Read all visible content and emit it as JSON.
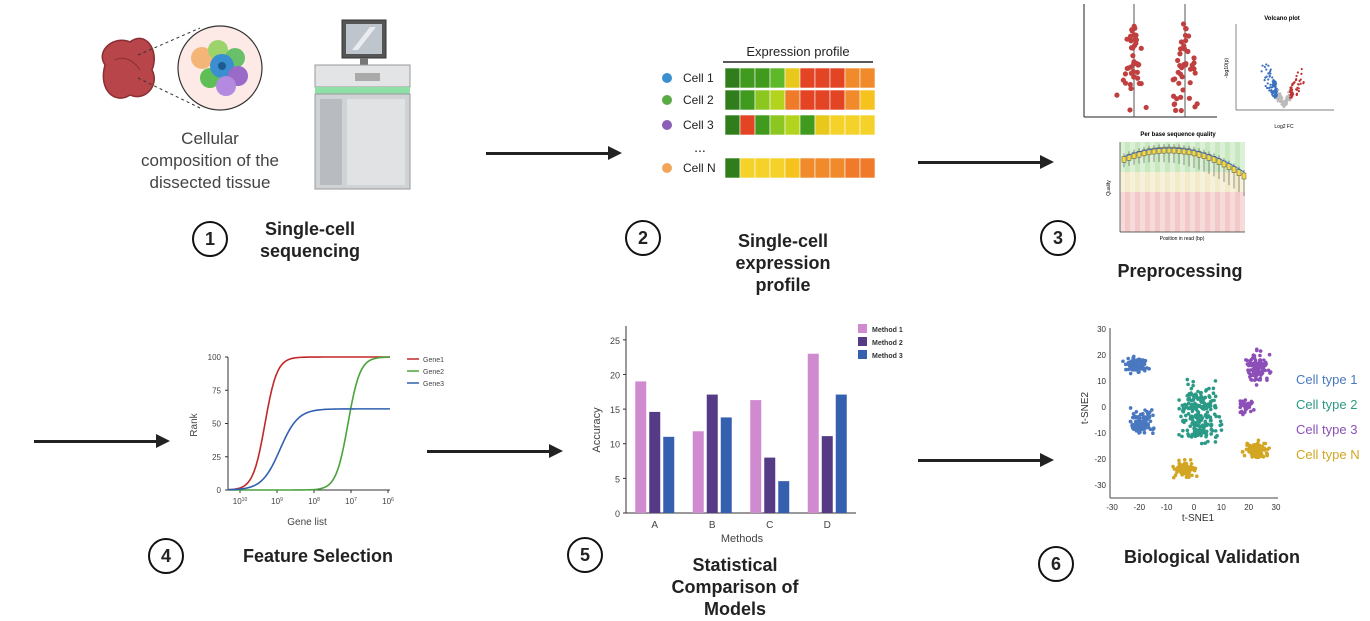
{
  "steps": [
    {
      "number": "1",
      "title": "Single-cell sequencing"
    },
    {
      "number": "2",
      "title": "Single-cell expression profile"
    },
    {
      "number": "3",
      "title": "Preprocessing"
    },
    {
      "number": "4",
      "title": "Feature Selection"
    },
    {
      "number": "5",
      "title": "Statistical Comparison of Models"
    },
    {
      "number": "6",
      "title": "Biological Validation"
    }
  ],
  "tissue_caption_lines": [
    "Cellular",
    "composition of the",
    "dissected tissue"
  ],
  "expression_profile": {
    "title": "Expression profile",
    "rows": [
      {
        "label": "Cell 1",
        "dot": "#3a8fd0",
        "colors": [
          "#2f7d1b",
          "#3f9a1e",
          "#3f9a1e",
          "#5fb82a",
          "#e8c81a",
          "#e24424",
          "#e24424",
          "#e24424",
          "#f08a2a",
          "#f08a2a"
        ]
      },
      {
        "label": "Cell 2",
        "dot": "#5aaa44",
        "colors": [
          "#2f7d1b",
          "#3f9a1e",
          "#8cc620",
          "#b3d41f",
          "#ef7a2a",
          "#e24424",
          "#e24424",
          "#e24424",
          "#f08a2a",
          "#f5c21e"
        ]
      },
      {
        "label": "Cell 3",
        "dot": "#8b5fb5",
        "colors": [
          "#2f7d1b",
          "#e24424",
          "#3f9a1e",
          "#8cc620",
          "#b3d41f",
          "#3f9a1e",
          "#e8c81a",
          "#f5d22a",
          "#f5d22a",
          "#f5d22a"
        ]
      },
      {
        "label": "Cell N",
        "dot": "#f2a55a",
        "colors": [
          "#2f7d1b",
          "#f5d22a",
          "#f5d22a",
          "#f5d22a",
          "#f5c21e",
          "#f08a2a",
          "#f08a2a",
          "#f08a2a",
          "#ef7a2a",
          "#ef7a2a"
        ]
      }
    ],
    "ellipsis": "..."
  },
  "volcano": {
    "title": "Volcano plot",
    "xlabel": "Log2 FC",
    "ylabel": "-log10(p)"
  },
  "quality": {
    "title": "Per base sequence quality",
    "xlabel": "Position in read (bp)",
    "ylabel": "Quality"
  },
  "feature_chart": {
    "type": "line",
    "xlabel": "Gene list",
    "ylabel": "Rank",
    "yticks": [
      "0",
      "25",
      "50",
      "75",
      "100"
    ],
    "xticks": [
      "10^10",
      "10^9",
      "10^8",
      "10^7",
      "10^6"
    ],
    "xtick_display": [
      {
        "base": "10",
        "exp": "10"
      },
      {
        "base": "10",
        "exp": "9"
      },
      {
        "base": "10",
        "exp": "8"
      },
      {
        "base": "10",
        "exp": "7"
      },
      {
        "base": "10",
        "exp": "6"
      }
    ],
    "series": [
      {
        "name": "Gene1",
        "color": "#c0282a"
      },
      {
        "name": "Gene2",
        "color": "#4aa33a"
      },
      {
        "name": "Gene3",
        "color": "#3060b0"
      }
    ]
  },
  "chart_data": {
    "type": "bar",
    "categories": [
      "A",
      "B",
      "C",
      "D"
    ],
    "series": [
      {
        "name": "Method 1",
        "color": "#d08ad0",
        "values": [
          19,
          11.8,
          16.3,
          23
        ]
      },
      {
        "name": "Method 2",
        "color": "#553a86",
        "values": [
          14.6,
          17.1,
          8,
          11.1
        ]
      },
      {
        "name": "Method 3",
        "color": "#3560b0",
        "values": [
          11,
          13.8,
          4.6,
          17.1
        ]
      }
    ],
    "xlabel": "Methods",
    "ylabel": "Accuracy",
    "ylim": [
      0,
      27
    ],
    "yticks": [
      0,
      5,
      10,
      15,
      20,
      25
    ],
    "legend": "top-right"
  },
  "tsne": {
    "xlabel": "t-SNE1",
    "ylabel": "t-SNE2",
    "xticks": [
      "-30",
      "-20",
      "-10",
      "0",
      "10",
      "20",
      "30"
    ],
    "yticks": [
      "30",
      "20",
      "10",
      "0",
      "-10",
      "-20",
      "-30"
    ],
    "clusters": [
      {
        "name": "Cell type 1",
        "color": "#4a78c0"
      },
      {
        "name": "Cell type 2",
        "color": "#2a9a86"
      },
      {
        "name": "Cell type 3",
        "color": "#8c4fb8"
      },
      {
        "name": "Cell type N",
        "color": "#d2a623"
      }
    ]
  }
}
